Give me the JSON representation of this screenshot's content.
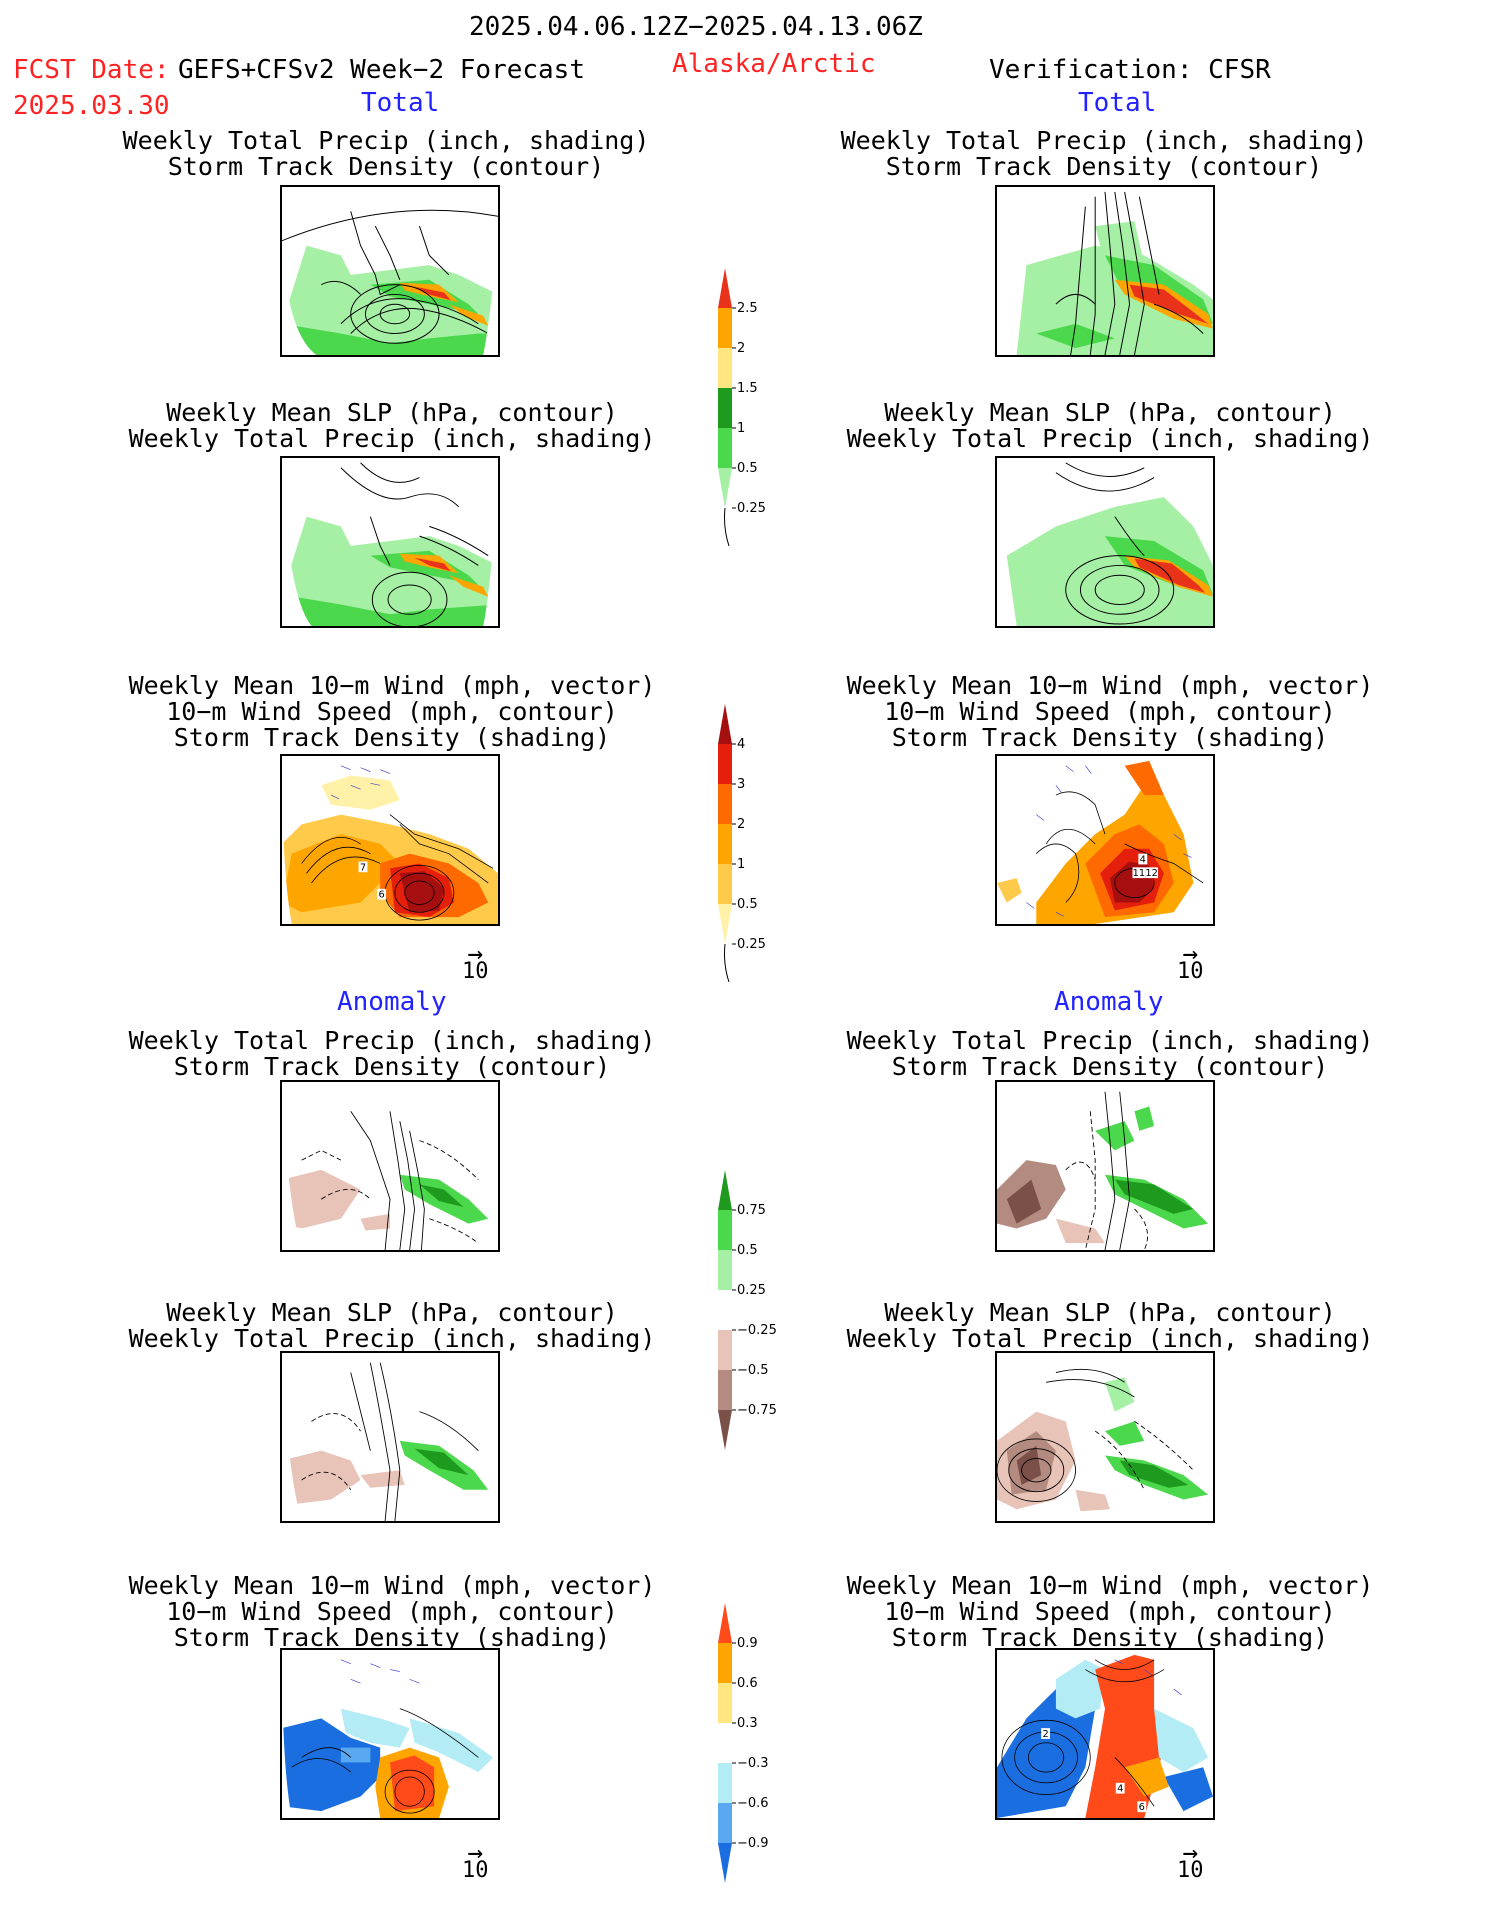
{
  "header": {
    "period": "2025.04.06.12Z−2025.04.13.06Z",
    "fcst_label": "FCST Date:",
    "model": "GEFS+CFSv2 Week−2 Forecast",
    "fcst_date": "2025.03.30",
    "region": "Alaska/Arctic",
    "verification": "Verification: CFSR"
  },
  "sections": {
    "total_label": "Total",
    "anomaly_label": "Anomaly"
  },
  "titles": {
    "precip_storm": [
      "Weekly Total Precip (inch, shading)",
      "Storm Track Density (contour)"
    ],
    "slp_precip": [
      "Weekly Mean SLP (hPa, contour)",
      "Weekly Total Precip (inch, shading)"
    ],
    "wind_storm": [
      "Weekly Mean 10−m Wind (mph, vector)",
      "10−m Wind Speed (mph, contour)",
      "Storm Track Density (shading)"
    ]
  },
  "wind_key_label": "10",
  "contour_labels": {
    "fcst_total_wind": [
      "7",
      "6"
    ],
    "cfsr_total_wind": [
      "4",
      "11",
      "12"
    ],
    "cfsr_anom_wind": [
      "2",
      "4",
      "6"
    ]
  },
  "colorbars": {
    "precip_total": {
      "labels": [
        "2.5",
        "2",
        "1.5",
        "1",
        "0.5",
        "0.25"
      ],
      "colors": [
        "#e8331a",
        "#ffa500",
        "#ffe680",
        "#1e9b1e",
        "#4cd84c",
        "#a6f0a6"
      ]
    },
    "storm_total": {
      "labels": [
        "4",
        "3",
        "2",
        "1",
        "0.5",
        "0.25"
      ],
      "colors": [
        "#a50f0f",
        "#e4200c",
        "#ff6a00",
        "#ffa500",
        "#ffc94a",
        "#fff2a8"
      ]
    },
    "precip_anom": {
      "labels": [
        "0.75",
        "0.5",
        "0.25",
        "−0.25",
        "−0.5",
        "−0.75"
      ],
      "colors": [
        "#1e9b1e",
        "#4cd84c",
        "#a6f0a6",
        "#ffffff",
        "#e8c4b8",
        "#b48b80",
        "#7a5048"
      ]
    },
    "storm_anom": {
      "labels": [
        "0.9",
        "0.6",
        "0.3",
        "−0.3",
        "−0.6",
        "−0.9"
      ],
      "colors": [
        "#ff4a1a",
        "#ffa500",
        "#ffe680",
        "#ffffff",
        "#b3ecf5",
        "#5aa8f0",
        "#1a6ee0"
      ]
    }
  }
}
